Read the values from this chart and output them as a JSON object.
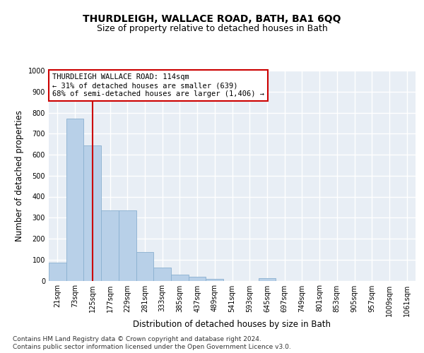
{
  "title": "THURDLEIGH, WALLACE ROAD, BATH, BA1 6QQ",
  "subtitle": "Size of property relative to detached houses in Bath",
  "xlabel": "Distribution of detached houses by size in Bath",
  "ylabel": "Number of detached properties",
  "footer_line1": "Contains HM Land Registry data © Crown copyright and database right 2024.",
  "footer_line2": "Contains public sector information licensed under the Open Government Licence v3.0.",
  "bar_labels": [
    "21sqm",
    "73sqm",
    "125sqm",
    "177sqm",
    "229sqm",
    "281sqm",
    "333sqm",
    "385sqm",
    "437sqm",
    "489sqm",
    "541sqm",
    "593sqm",
    "645sqm",
    "697sqm",
    "749sqm",
    "801sqm",
    "853sqm",
    "905sqm",
    "957sqm",
    "1009sqm",
    "1061sqm"
  ],
  "bar_values": [
    85,
    770,
    645,
    335,
    335,
    135,
    63,
    27,
    20,
    10,
    0,
    0,
    12,
    0,
    0,
    0,
    0,
    0,
    0,
    0,
    0
  ],
  "bar_color": "#b8d0e8",
  "bar_edgecolor": "#8ab0d0",
  "highlight_color": "#cc0000",
  "vline_x": 2.0,
  "annotation_title": "THURDLEIGH WALLACE ROAD: 114sqm",
  "annotation_line2": "← 31% of detached houses are smaller (639)",
  "annotation_line3": "68% of semi-detached houses are larger (1,406) →",
  "annotation_box_color": "#cc0000",
  "ylim": [
    0,
    1000
  ],
  "yticks": [
    0,
    100,
    200,
    300,
    400,
    500,
    600,
    700,
    800,
    900,
    1000
  ],
  "background_color": "#e8eef5",
  "grid_color": "#ffffff",
  "title_fontsize": 10,
  "subtitle_fontsize": 9,
  "axis_label_fontsize": 8.5,
  "tick_fontsize": 7,
  "footer_fontsize": 6.5
}
